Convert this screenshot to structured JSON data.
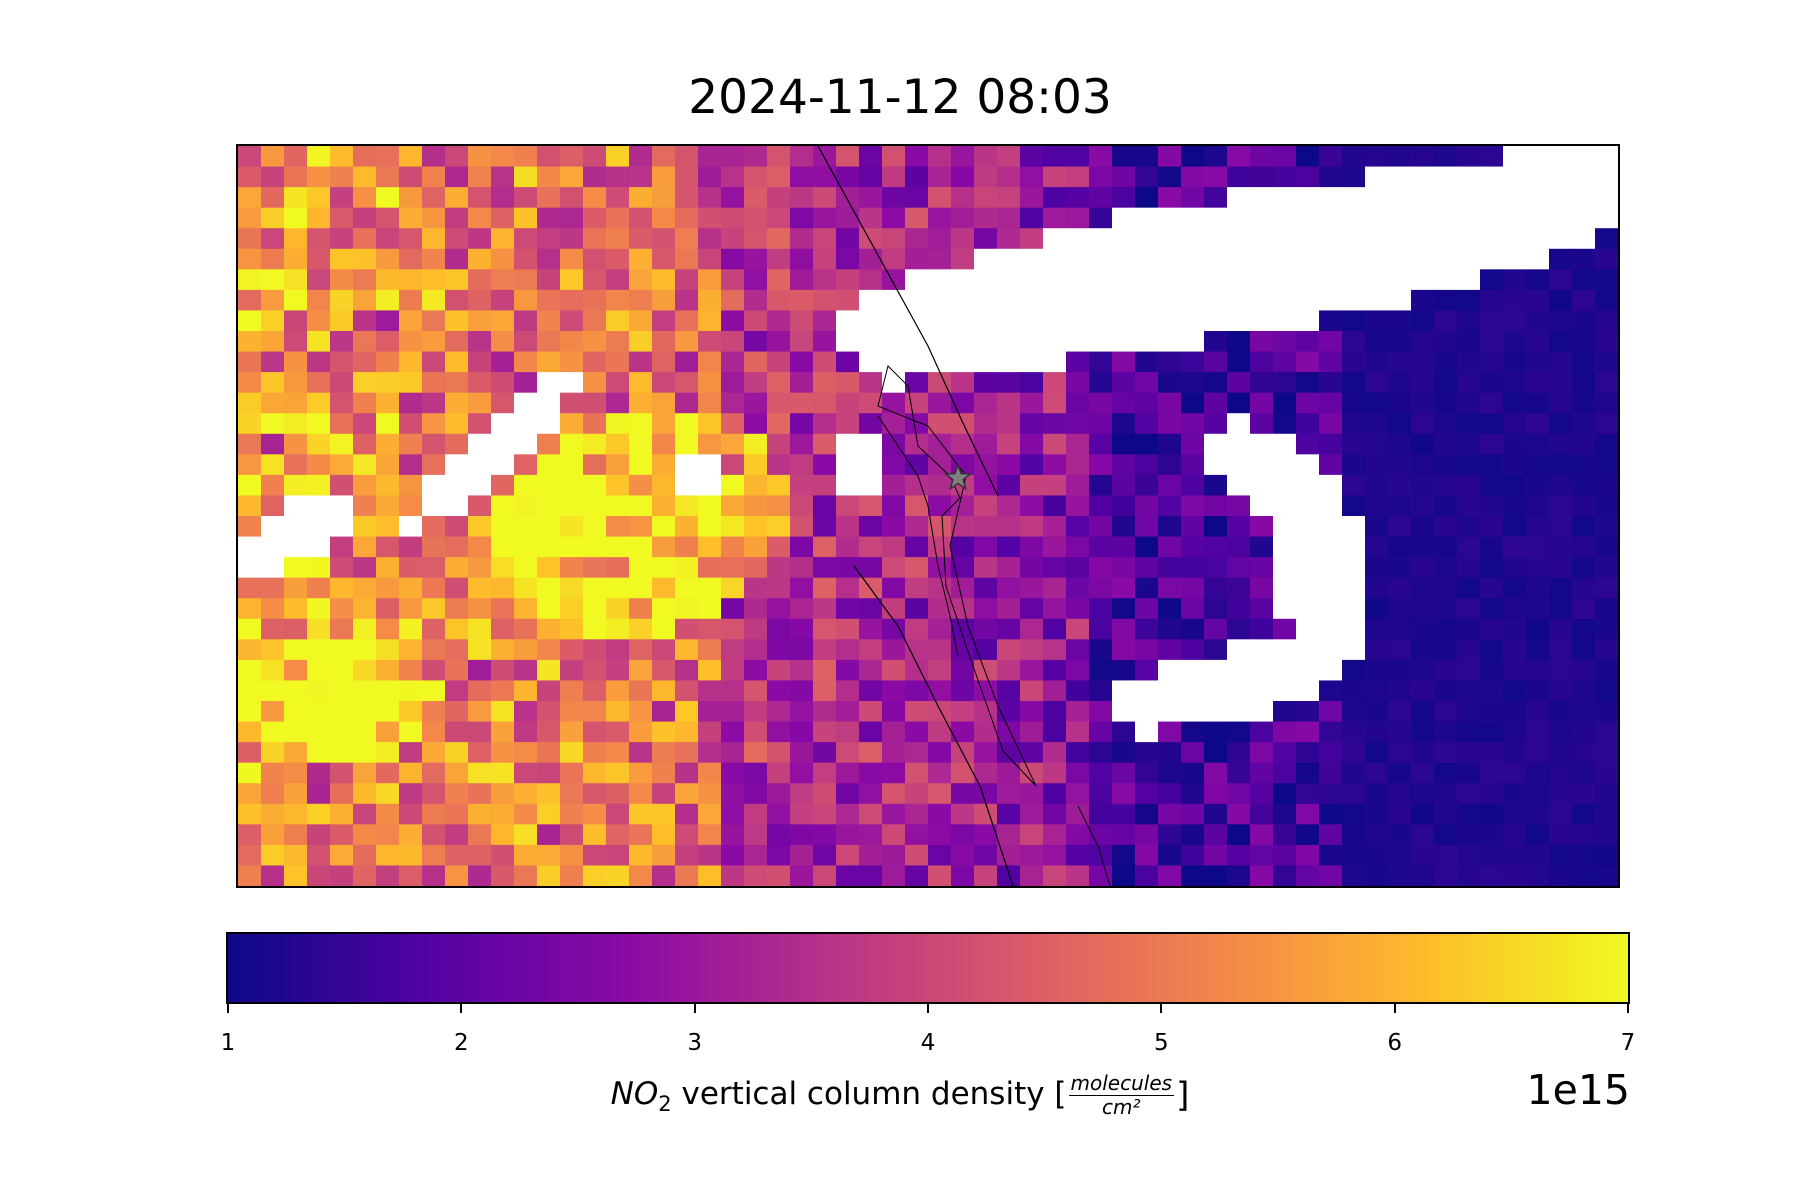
{
  "chart_data": {
    "type": "heatmap",
    "title": "2024-11-12 08:03",
    "colormap": "plasma",
    "colormap_stops": [
      "#0d0887",
      "#5302a3",
      "#8b0aa5",
      "#b83289",
      "#db5c68",
      "#f48849",
      "#febd2a",
      "#f0f921"
    ],
    "missing_color": "#ffffff",
    "vmin": 1,
    "vmax": 7,
    "colorbar": {
      "orientation": "horizontal",
      "ticks": [
        1,
        2,
        3,
        4,
        5,
        6,
        7
      ],
      "tick_labels": [
        "1",
        "2",
        "3",
        "4",
        "5",
        "6",
        "7"
      ],
      "label_species": "NO",
      "label_sub": "2",
      "label_text": " vertical column density [",
      "label_num": "molecules",
      "label_den": "cm²",
      "label_close": "]",
      "multiplier": "1e15"
    },
    "grid_columns": 60,
    "grid_rows": 36,
    "regions": [
      {
        "area": "west",
        "value_range": [
          3,
          7
        ]
      },
      {
        "area": "central",
        "value_range": [
          2,
          4.5
        ]
      },
      {
        "area": "east",
        "value_range": [
          1,
          2
        ]
      }
    ],
    "marker": {
      "type": "star",
      "color": "#808080"
    }
  }
}
